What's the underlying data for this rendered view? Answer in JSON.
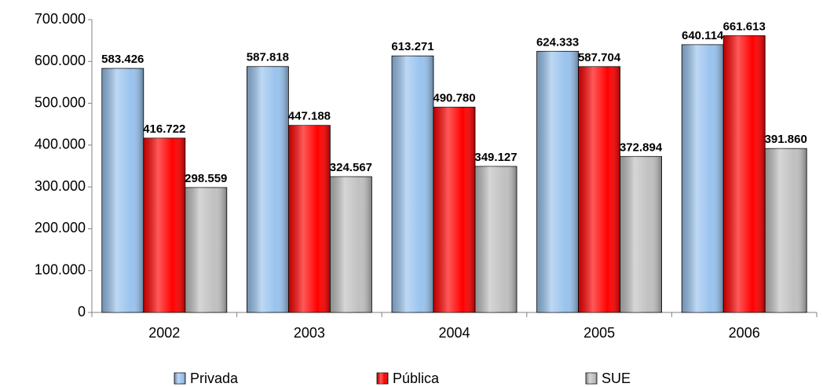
{
  "chart_data": {
    "type": "bar",
    "categories": [
      "2002",
      "2003",
      "2004",
      "2005",
      "2006"
    ],
    "series": [
      {
        "name": "Privada",
        "color": "#99c3ee",
        "values": [
          583426,
          587818,
          613271,
          624333,
          640114
        ],
        "value_labels": [
          "583.426",
          "587.818",
          "613.271",
          "624.333",
          "640.114"
        ]
      },
      {
        "name": "Pública",
        "color": "#ff0000",
        "values": [
          416722,
          447188,
          490780,
          587704,
          661613
        ],
        "value_labels": [
          "416.722",
          "447.188",
          "490.780",
          "587.704",
          "661.613"
        ]
      },
      {
        "name": "SUE",
        "color": "#c0c0c0",
        "values": [
          298559,
          324567,
          349127,
          372894,
          391860
        ],
        "value_labels": [
          "298.559",
          "324.567",
          "349.127",
          "372.894",
          "391.860"
        ]
      }
    ],
    "ylim": [
      0,
      700000
    ],
    "yticks": [
      0,
      {
        "value": 100000,
        "label": "100.000"
      },
      {
        "value": 200000,
        "label": "200.000"
      },
      {
        "value": 300000,
        "label": "300.000"
      },
      {
        "value": 400000,
        "label": "400.000"
      },
      {
        "value": 500000,
        "label": "500.000"
      },
      {
        "value": 600000,
        "label": "600.000"
      },
      {
        "value": 700000,
        "label": "700.000"
      }
    ],
    "legend": "bottom"
  }
}
